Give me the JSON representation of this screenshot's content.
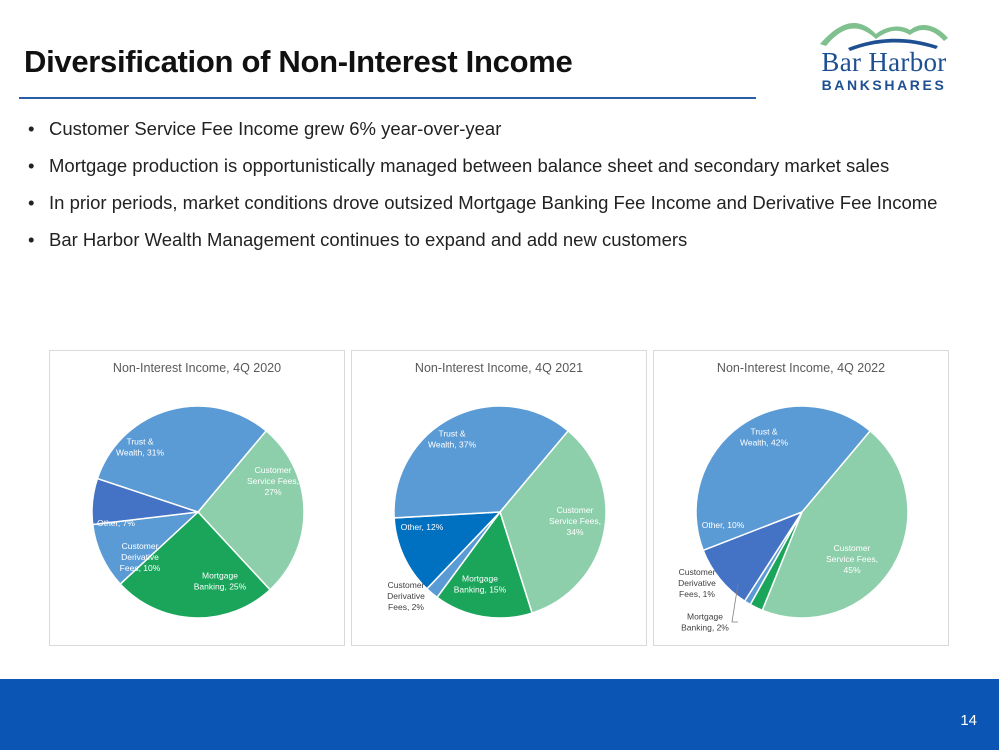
{
  "slide": {
    "title": "Diversification of Non-Interest Income",
    "page_number": "14"
  },
  "logo": {
    "line1": "Bar Harbor",
    "line2": "BANKSHARES"
  },
  "bullets": [
    "Customer Service Fee Income grew 6% year-over-year",
    "Mortgage production is opportunistically managed between balance sheet and secondary market sales",
    "In prior periods, market conditions drove outsized Mortgage Banking Fee Income and Derivative Fee Income",
    "Bar Harbor Wealth Management continues to expand and add new customers"
  ],
  "colors": {
    "trust_wealth": "#5b9bd5",
    "customer_service": "#8ecfab",
    "mortgage": "#1aa55a",
    "derivative": "#5b9bd5",
    "other_2020": "#4472c4",
    "other_2021": "#0070c0",
    "other_2022": "#4472c4",
    "footer": "#0b55b5",
    "title_rule": "#2a5fa8"
  },
  "chart_data": [
    {
      "type": "pie",
      "title": "Non-Interest Income, 4Q 2020",
      "slices": [
        {
          "label": "Customer Service Fees, 27%",
          "value": 27,
          "color": "#8ecfab"
        },
        {
          "label": "Mortgage Banking, 25%",
          "value": 25,
          "color": "#1aa55a"
        },
        {
          "label": "Customer Derivative Fees, 10%",
          "value": 10,
          "color": "#5b9bd5"
        },
        {
          "label": "Other, 7%",
          "value": 7,
          "color": "#4472c4"
        },
        {
          "label": "Trust & Wealth, 31%",
          "value": 31,
          "color": "#5b9bd5"
        }
      ]
    },
    {
      "type": "pie",
      "title": "Non-Interest Income, 4Q 2021",
      "slices": [
        {
          "label": "Customer Service Fees, 34%",
          "value": 34,
          "color": "#8ecfab"
        },
        {
          "label": "Mortgage Banking, 15%",
          "value": 15,
          "color": "#1aa55a"
        },
        {
          "label": "Customer Derivative Fees, 2%",
          "value": 2,
          "color": "#5b9bd5"
        },
        {
          "label": "Other, 12%",
          "value": 12,
          "color": "#0070c0"
        },
        {
          "label": "Trust & Wealth, 37%",
          "value": 37,
          "color": "#5b9bd5"
        }
      ]
    },
    {
      "type": "pie",
      "title": "Non-Interest Income, 4Q 2022",
      "slices": [
        {
          "label": "Customer Service Fees, 45%",
          "value": 45,
          "color": "#8ecfab"
        },
        {
          "label": "Mortgage Banking, 2%",
          "value": 2,
          "color": "#1aa55a"
        },
        {
          "label": "Customer Derivative Fees, 1%",
          "value": 1,
          "color": "#5b9bd5"
        },
        {
          "label": "Other, 10%",
          "value": 10,
          "color": "#4472c4"
        },
        {
          "label": "Trust & Wealth, 42%",
          "value": 42,
          "color": "#5b9bd5"
        }
      ]
    }
  ]
}
